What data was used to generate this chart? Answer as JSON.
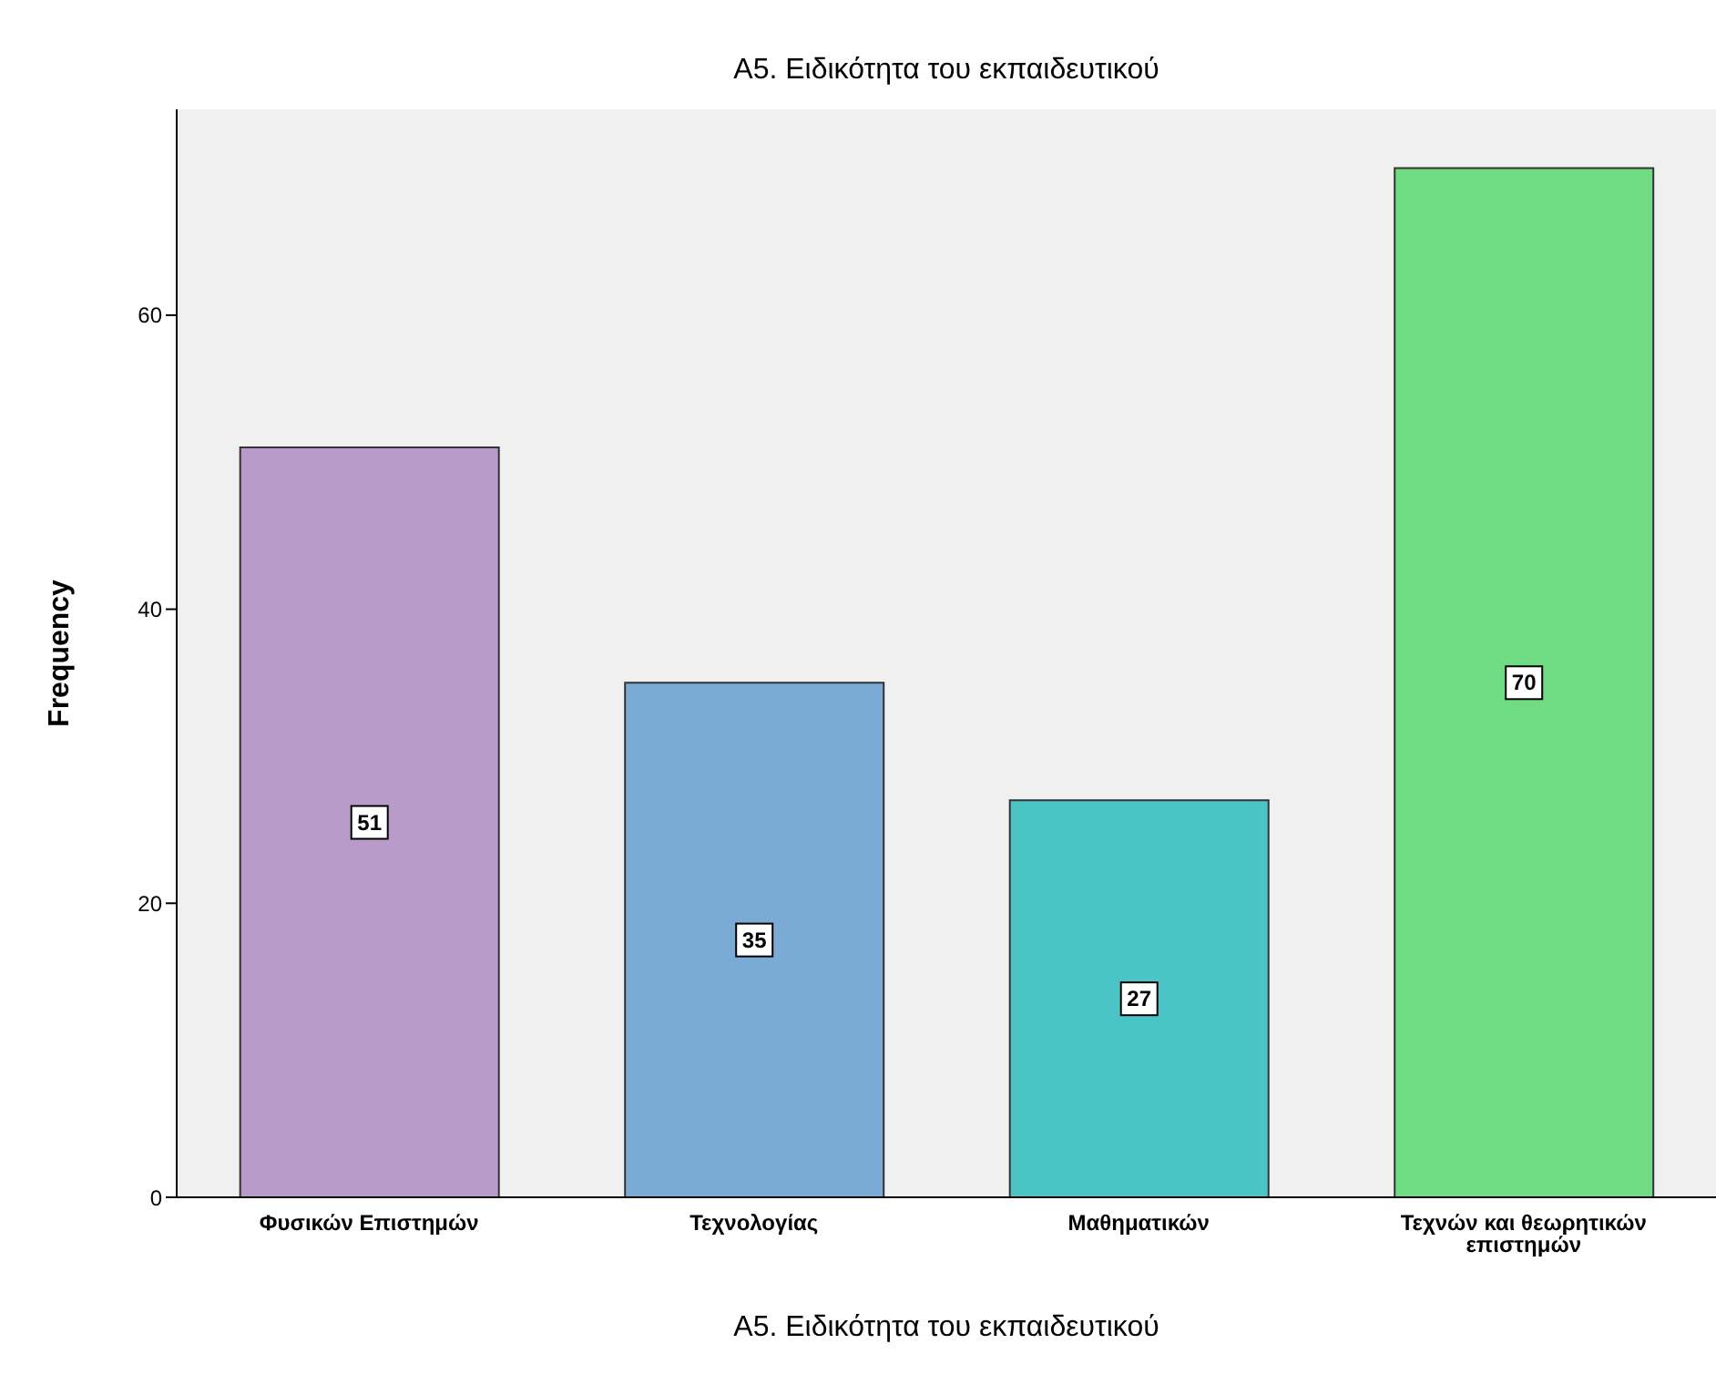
{
  "chart_data": {
    "type": "bar",
    "title": "Α5. Ειδικότητα του εκπαιδευτικού",
    "xlabel": "Α5. Ειδικότητα του εκπαιδευτικού",
    "ylabel": "Frequency",
    "categories": [
      "Φυσικών Επιστημών",
      "Τεχνολογίας",
      "Μαθηματικών",
      "Τεχνών και θεωρητικών επιστημών"
    ],
    "values": [
      51,
      35,
      27,
      70
    ],
    "colors": [
      "#b89bc9",
      "#7aaad6",
      "#4bc4c6",
      "#6fdc84"
    ],
    "ylim": [
      0,
      74
    ],
    "yticks": [
      0,
      20,
      40,
      60
    ],
    "grid": false,
    "legend": false,
    "data_labels": true
  }
}
